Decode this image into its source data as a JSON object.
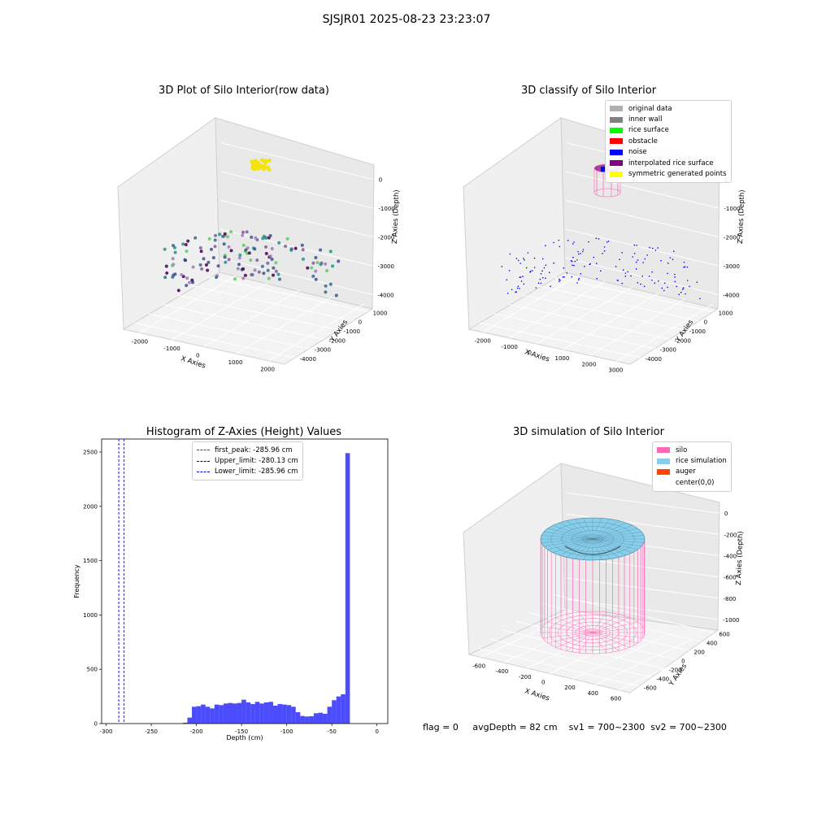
{
  "suptitle": "SJSJR01 2025-08-23 23:23:07",
  "panel1": {
    "title": "3D Plot of Silo Interior(row data)",
    "xlabel": "X Axies",
    "ylabel": "Y Axies",
    "zlabel": "Z Axies (Depth)",
    "xticks": [
      "-2000",
      "-1000",
      "0",
      "1000",
      "2000"
    ],
    "yticks": [
      "1000",
      "0",
      "-1000",
      "-2000",
      "-3000",
      "-4000"
    ],
    "zticks": [
      "0",
      "-1000",
      "-2000",
      "-3000",
      "-4000"
    ]
  },
  "panel2": {
    "title": "3D classify of Silo Interior",
    "xlabel": "X Axies",
    "ylabel": "Y Axies",
    "zlabel": "Z Axies (Depth)",
    "xticks": [
      "-2000",
      "-1000",
      "0",
      "1000",
      "2000",
      "3000"
    ],
    "yticks": [
      "1000",
      "0",
      "-1000",
      "-2000",
      "-3000",
      "-4000"
    ],
    "zticks": [
      "0",
      "-1000",
      "-2000",
      "-3000",
      "-4000"
    ],
    "legend": [
      {
        "label": "original data",
        "color": "#b0b0b0"
      },
      {
        "label": "inner wall",
        "color": "#808080"
      },
      {
        "label": "rice surface",
        "color": "#00ff00"
      },
      {
        "label": "obstacle",
        "color": "#ff0000"
      },
      {
        "label": "noise",
        "color": "#0000ff"
      },
      {
        "label": "interpolated rice surface",
        "color": "#800080"
      },
      {
        "label": "symmetric generated points",
        "color": "#ffff00"
      }
    ]
  },
  "panel3": {
    "title": "Histogram of Z-Axies (Height) Values",
    "xlabel": "Depth (cm)",
    "ylabel": "Frequency",
    "legend": [
      {
        "label": "first_peak: -285.96 cm",
        "color": "#ff0000"
      },
      {
        "label": "Upper_limit: -280.13 cm",
        "color": "#00008b"
      },
      {
        "label": "Lower_limit: -285.96 cm",
        "color": "#0000ff"
      }
    ]
  },
  "panel4": {
    "title": "3D simulation of Silo Interior",
    "xlabel": "X Axies",
    "ylabel": "Y Axies",
    "zlabel": "Z Axies (Depth)",
    "xticks": [
      "-600",
      "-400",
      "-200",
      "0",
      "200",
      "400",
      "600"
    ],
    "yticks": [
      "600",
      "400",
      "200",
      "0",
      "-200",
      "-400",
      "-600"
    ],
    "zticks": [
      "0",
      "-200",
      "-400",
      "-600",
      "-800",
      "-1000"
    ],
    "legend": [
      {
        "label": "silo",
        "color": "#ff69b4"
      },
      {
        "label": "rice simulation",
        "color": "#87ceeb"
      },
      {
        "label": "auger",
        "color": "#ff4500"
      },
      {
        "label": "center(0,0)",
        "color": "#ffffff"
      }
    ]
  },
  "footer": {
    "flag": "flag = 0",
    "avg_depth": "avgDepth = 82 cm",
    "sv1": "sv1 = 700~2300",
    "sv2": "sv2 = 700~2300"
  },
  "chart_data": [
    {
      "type": "scatter",
      "subtype": "3d",
      "title": "3D Plot of Silo Interior(row data)",
      "xlabel": "X Axies",
      "ylabel": "Y Axies",
      "zlabel": "Z Axies (Depth)",
      "xlim": [
        -2500,
        2800
      ],
      "ylim": [
        -4500,
        1500
      ],
      "zlim": [
        -4500,
        300
      ],
      "note": "viridis-coloured point cloud; yellow cluster near z=0, floor points near z=-4000"
    },
    {
      "type": "scatter",
      "subtype": "3d",
      "title": "3D classify of Silo Interior",
      "xlim": [
        -2500,
        3000
      ],
      "ylim": [
        -4500,
        1500
      ],
      "zlim": [
        -4500,
        300
      ],
      "series": [
        {
          "name": "original data"
        },
        {
          "name": "inner wall"
        },
        {
          "name": "rice surface"
        },
        {
          "name": "obstacle"
        },
        {
          "name": "noise"
        },
        {
          "name": "interpolated rice surface"
        },
        {
          "name": "symmetric generated points"
        }
      ]
    },
    {
      "type": "bar",
      "subtype": "histogram",
      "title": "Histogram of Z-Axies (Height) Values",
      "xlabel": "Depth (cm)",
      "ylabel": "Frequency",
      "xlim": [
        -305,
        12
      ],
      "ylim": [
        0,
        2620
      ],
      "xticks": [
        -300,
        -250,
        -200,
        -150,
        -100,
        -50,
        0
      ],
      "yticks": [
        0,
        500,
        1000,
        1500,
        2000,
        2500
      ],
      "bin_width": 5,
      "bins_start": [
        -215,
        -210,
        -205,
        -200,
        -195,
        -190,
        -185,
        -180,
        -175,
        -170,
        -165,
        -160,
        -155,
        -150,
        -145,
        -140,
        -135,
        -130,
        -125,
        -120,
        -115,
        -110,
        -105,
        -100,
        -95,
        -90,
        -85,
        -80,
        -75,
        -70,
        -65,
        -60,
        -55,
        -50,
        -45,
        -40,
        -35,
        -30,
        -25,
        -20,
        -15,
        -10,
        -5
      ],
      "values": [
        8,
        55,
        155,
        160,
        175,
        155,
        140,
        175,
        170,
        185,
        190,
        185,
        190,
        220,
        195,
        180,
        200,
        185,
        195,
        200,
        165,
        180,
        175,
        170,
        155,
        105,
        70,
        65,
        68,
        95,
        100,
        90,
        155,
        215,
        250,
        270,
        2490,
        0,
        0,
        0,
        0,
        0,
        0
      ],
      "vlines": [
        {
          "label": "first_peak: -285.96 cm",
          "x": -285.96
        },
        {
          "label": "Upper_limit: -280.13 cm",
          "x": -280.13
        },
        {
          "label": "Lower_limit: -285.96 cm",
          "x": -285.96
        }
      ]
    },
    {
      "type": "area",
      "subtype": "3d-wireframe",
      "title": "3D simulation of Silo Interior",
      "xlim": [
        -650,
        650
      ],
      "ylim": [
        -650,
        650
      ],
      "zlim": [
        -1100,
        100
      ],
      "series": [
        {
          "name": "silo"
        },
        {
          "name": "rice simulation"
        },
        {
          "name": "auger"
        },
        {
          "name": "center(0,0)"
        }
      ]
    }
  ]
}
